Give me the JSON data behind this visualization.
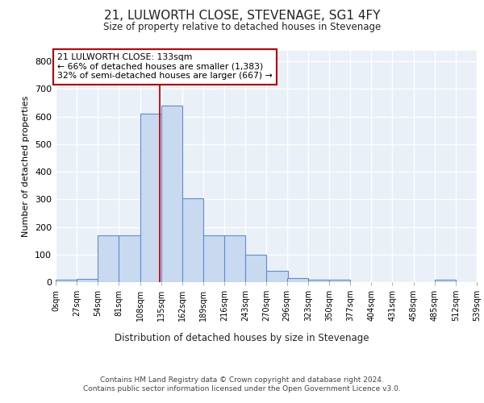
{
  "title": "21, LULWORTH CLOSE, STEVENAGE, SG1 4FY",
  "subtitle": "Size of property relative to detached houses in Stevenage",
  "xlabel": "Distribution of detached houses by size in Stevenage",
  "ylabel": "Number of detached properties",
  "annotation_line1": "21 LULWORTH CLOSE: 133sqm",
  "annotation_line2": "← 66% of detached houses are smaller (1,383)",
  "annotation_line3": "32% of semi-detached houses are larger (667) →",
  "property_size": 133,
  "bin_width": 27,
  "bin_starts": [
    0,
    27,
    54,
    81,
    108,
    135,
    162,
    189,
    216,
    243,
    270,
    296,
    323,
    350,
    377,
    404,
    431,
    458,
    485,
    512
  ],
  "bar_heights": [
    8,
    12,
    170,
    170,
    610,
    640,
    305,
    170,
    170,
    100,
    42,
    15,
    8,
    8,
    0,
    0,
    0,
    0,
    8,
    0
  ],
  "tick_labels": [
    "0sqm",
    "27sqm",
    "54sqm",
    "81sqm",
    "108sqm",
    "135sqm",
    "162sqm",
    "189sqm",
    "216sqm",
    "243sqm",
    "270sqm",
    "296sqm",
    "323sqm",
    "350sqm",
    "377sqm",
    "404sqm",
    "431sqm",
    "458sqm",
    "485sqm",
    "512sqm",
    "539sqm"
  ],
  "bar_color": "#c9d9f0",
  "bar_edge_color": "#5b8dd9",
  "red_line_color": "#cc0000",
  "annotation_box_color": "#ffffff",
  "annotation_box_edge": "#cc0000",
  "bg_color": "#eaf0f8",
  "grid_color": "#ffffff",
  "footer_text": "Contains HM Land Registry data © Crown copyright and database right 2024.\nContains public sector information licensed under the Open Government Licence v3.0.",
  "ylim": [
    0,
    840
  ],
  "yticks": [
    0,
    100,
    200,
    300,
    400,
    500,
    600,
    700,
    800
  ]
}
